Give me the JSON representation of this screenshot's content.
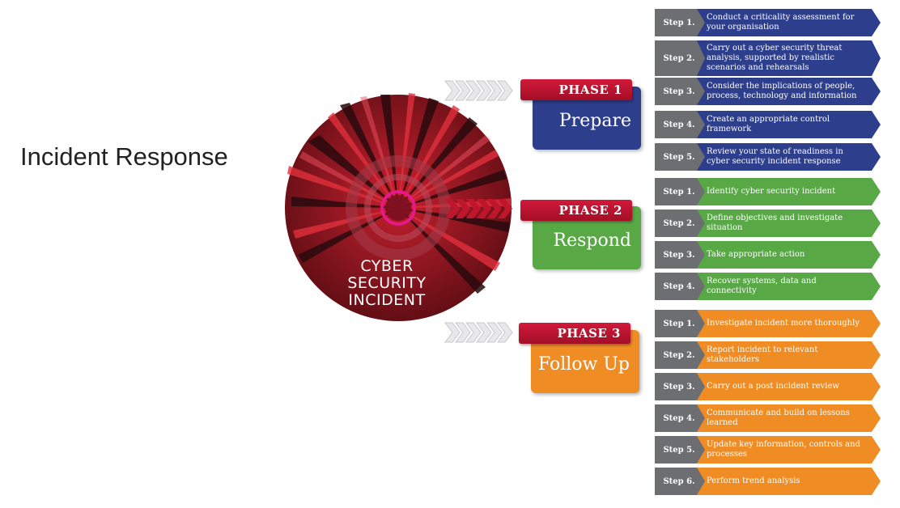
{
  "title": "Incident Response",
  "circle_lines": [
    "CYBER",
    "SECURITY",
    "INCIDENT"
  ],
  "colors": {
    "phase1": "#2d3e8c",
    "phase2": "#58a946",
    "phase3": "#f08c24",
    "phase_tag": "#b8142f",
    "step_label": "#6d6e71",
    "circle": "#7a1a22"
  },
  "phases": [
    {
      "tag": "PHASE 1",
      "name": "Prepare",
      "steps": [
        {
          "label": "Step 1.",
          "text": "Conduct a criticality assessment for your organisation"
        },
        {
          "label": "Step 2.",
          "text": "Carry out a cyber security threat analysis, supported by realistic scenarios and rehearsals"
        },
        {
          "label": "Step 3.",
          "text": "Consider the implications of people, process, technology and information"
        },
        {
          "label": "Step 4.",
          "text": "Create an appropriate control framework"
        },
        {
          "label": "Step 5.",
          "text": "Review your state of readiness in cyber security incident response"
        }
      ]
    },
    {
      "tag": "PHASE 2",
      "name": "Respond",
      "steps": [
        {
          "label": "Step 1.",
          "text": "Identify cyber security incident"
        },
        {
          "label": "Step 2.",
          "text": "Define objectives and investigate situation"
        },
        {
          "label": "Step 3.",
          "text": "Take appropriate action"
        },
        {
          "label": "Step 4.",
          "text": "Recover systems, data and connectivity"
        }
      ]
    },
    {
      "tag": "PHASE 3",
      "name": "Follow Up",
      "steps": [
        {
          "label": "Step 1.",
          "text": "Investigate incident more thoroughly"
        },
        {
          "label": "Step 2.",
          "text": "Report incident to relevant stakeholders"
        },
        {
          "label": "Step 3.",
          "text": "Carry out a post incident review"
        },
        {
          "label": "Step 4.",
          "text": "Communicate and build on lessons learned"
        },
        {
          "label": "Step 5.",
          "text": "Update key information, controls and processes"
        },
        {
          "label": "Step 6.",
          "text": "Perform trend analysis"
        }
      ]
    }
  ]
}
